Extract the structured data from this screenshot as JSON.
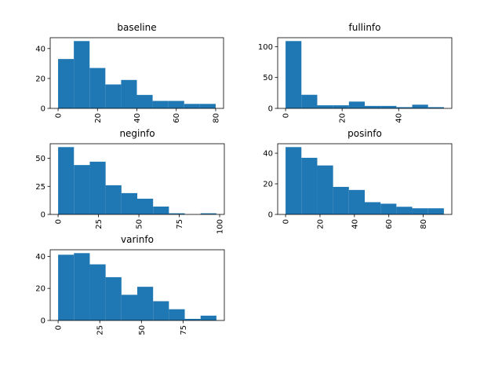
{
  "chart_data": [
    {
      "type": "histogram",
      "title": "baseline",
      "color": "#1f77b4",
      "bins": [
        0,
        8,
        16,
        24,
        32,
        40,
        48,
        56,
        64,
        72,
        80
      ],
      "values": [
        33,
        45,
        27,
        16,
        19,
        9,
        5,
        5,
        3,
        3
      ],
      "xlim": [
        -4,
        84
      ],
      "ylim": [
        0,
        47.25
      ],
      "xticks": [
        0,
        20,
        40,
        60,
        80
      ],
      "yticks": [
        0,
        20,
        40
      ]
    },
    {
      "type": "histogram",
      "title": "fullinfo",
      "color": "#1f77b4",
      "bins": [
        0,
        5.6,
        11.2,
        16.8,
        22.4,
        28,
        33.6,
        39.2,
        44.8,
        50.4,
        56
      ],
      "values": [
        109,
        22,
        5,
        5,
        11,
        4,
        4,
        2,
        6,
        2
      ],
      "xlim": [
        -2.8,
        58.8
      ],
      "ylim": [
        0,
        114.45
      ],
      "xticks": [
        0,
        20,
        40
      ],
      "yticks": [
        0,
        50,
        100
      ]
    },
    {
      "type": "histogram",
      "title": "neginfo",
      "color": "#1f77b4",
      "bins": [
        0,
        9.8,
        19.6,
        29.4,
        39.2,
        49,
        58.8,
        68.6,
        78.4,
        88.2,
        98
      ],
      "values": [
        60,
        44,
        47,
        26,
        19,
        14,
        7,
        1,
        0,
        1
      ],
      "xlim": [
        -4.9,
        102.9
      ],
      "ylim": [
        0,
        63
      ],
      "xticks": [
        0,
        25,
        50,
        75,
        100
      ],
      "yticks": [
        0,
        25,
        50
      ]
    },
    {
      "type": "histogram",
      "title": "posinfo",
      "color": "#1f77b4",
      "bins": [
        0,
        9.2,
        18.4,
        27.6,
        36.8,
        46,
        55.2,
        64.4,
        73.6,
        82.8,
        92
      ],
      "values": [
        44,
        37,
        32,
        18,
        16,
        8,
        7,
        5,
        4,
        4
      ],
      "xlim": [
        -4.6,
        96.6
      ],
      "ylim": [
        0,
        46.2
      ],
      "xticks": [
        0,
        20,
        40,
        60,
        80
      ],
      "yticks": [
        0,
        20,
        40
      ]
    },
    {
      "type": "histogram",
      "title": "varinfo",
      "color": "#1f77b4",
      "bins": [
        0,
        9.5,
        19,
        28.5,
        38,
        47.5,
        57,
        66.5,
        76,
        85.5,
        95
      ],
      "values": [
        41,
        42,
        35,
        27,
        16,
        21,
        12,
        7,
        1,
        3
      ],
      "xlim": [
        -4.75,
        99.75
      ],
      "ylim": [
        0,
        44.1
      ],
      "xticks": [
        0,
        25,
        50,
        75
      ],
      "yticks": [
        0,
        20,
        40
      ]
    }
  ]
}
